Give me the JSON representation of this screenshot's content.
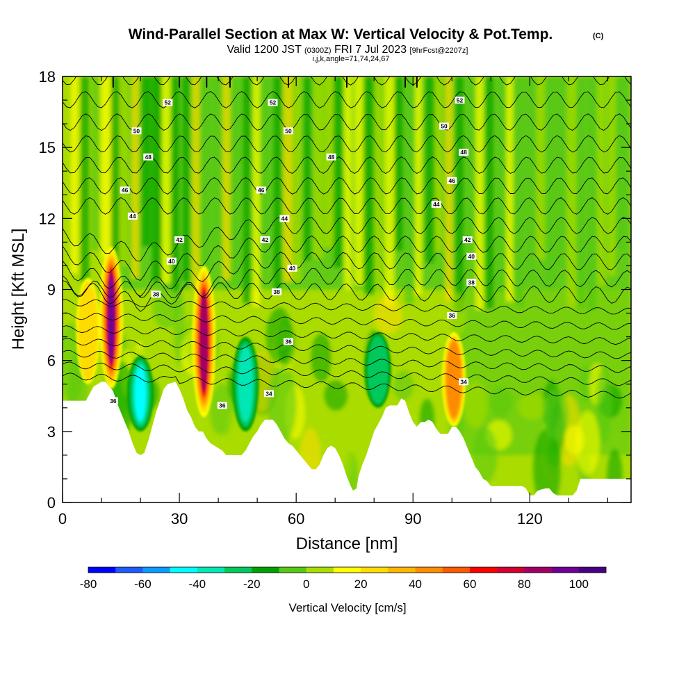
{
  "chart_data": {
    "type": "heatmap",
    "title": "Wind-Parallel Section at Max W: Vertical Velocity & Pot.Temp.",
    "title_mark": "(C)",
    "subtitle_main": "Valid 1200 JST",
    "subtitle_utc": "(0300Z)",
    "subtitle_date": "FRI 7 Jul 2023",
    "subtitle_fcst": "[9hrFcst@2207z]",
    "subtitle2": "i,j,k,angle=71,74,24,67",
    "xlabel": "Distance [nm]",
    "ylabel": "Height [Kft MSL]",
    "xlim": [
      0,
      146
    ],
    "ylim": [
      0,
      18
    ],
    "xticks": [
      0,
      30,
      60,
      90,
      120
    ],
    "yticks": [
      0,
      3,
      6,
      9,
      12,
      15,
      18
    ],
    "colorbar": {
      "label": "Vertical Velocity [cm/s]",
      "min": -80,
      "max": 110,
      "step": 10,
      "tick_values": [
        -80,
        -60,
        -40,
        -20,
        0,
        20,
        40,
        60,
        80,
        100
      ],
      "colors": [
        "#0000ff",
        "#1e5aff",
        "#0a9bff",
        "#00ffff",
        "#00e6b4",
        "#00c85a",
        "#00a000",
        "#55c814",
        "#aadc00",
        "#ffff00",
        "#ffdc00",
        "#ffb400",
        "#ff8c00",
        "#ff5a00",
        "#ff0000",
        "#d20032",
        "#a00064",
        "#6e0096",
        "#460082"
      ]
    },
    "contour_field": "Potential temperature",
    "contour_labels": [
      {
        "x": 27,
        "y": 16.9,
        "text": "52"
      },
      {
        "x": 54,
        "y": 16.9,
        "text": "52"
      },
      {
        "x": 102,
        "y": 17.0,
        "text": "52"
      },
      {
        "x": 19,
        "y": 15.7,
        "text": "50"
      },
      {
        "x": 58,
        "y": 15.7,
        "text": "50"
      },
      {
        "x": 98,
        "y": 15.9,
        "text": "50"
      },
      {
        "x": 22,
        "y": 14.6,
        "text": "48"
      },
      {
        "x": 69,
        "y": 14.6,
        "text": "48"
      },
      {
        "x": 103,
        "y": 14.8,
        "text": "48"
      },
      {
        "x": 16,
        "y": 13.2,
        "text": "46"
      },
      {
        "x": 51,
        "y": 13.2,
        "text": "46"
      },
      {
        "x": 100,
        "y": 13.6,
        "text": "46"
      },
      {
        "x": 18,
        "y": 12.1,
        "text": "44"
      },
      {
        "x": 57,
        "y": 12.0,
        "text": "44"
      },
      {
        "x": 96,
        "y": 12.6,
        "text": "44"
      },
      {
        "x": 30,
        "y": 11.1,
        "text": "42"
      },
      {
        "x": 52,
        "y": 11.1,
        "text": "42"
      },
      {
        "x": 104,
        "y": 11.1,
        "text": "42"
      },
      {
        "x": 28,
        "y": 10.2,
        "text": "40"
      },
      {
        "x": 59,
        "y": 9.9,
        "text": "40"
      },
      {
        "x": 105,
        "y": 10.4,
        "text": "40"
      },
      {
        "x": 24,
        "y": 8.8,
        "text": "38"
      },
      {
        "x": 55,
        "y": 8.9,
        "text": "38"
      },
      {
        "x": 105,
        "y": 9.3,
        "text": "38"
      },
      {
        "x": 58,
        "y": 6.8,
        "text": "36"
      },
      {
        "x": 100,
        "y": 7.9,
        "text": "36"
      },
      {
        "x": 41,
        "y": 4.1,
        "text": "36"
      },
      {
        "x": 13,
        "y": 4.3,
        "text": "36"
      },
      {
        "x": 53,
        "y": 4.6,
        "text": "34"
      },
      {
        "x": 103,
        "y": 5.1,
        "text": "34"
      }
    ],
    "updrafts": [
      {
        "x": 12.5,
        "y0": 4.8,
        "y1": 10.8,
        "peak_cm_s": 95
      },
      {
        "x": 36.3,
        "y0": 3.6,
        "y1": 10.0,
        "peak_cm_s": 90
      },
      {
        "x": 100.5,
        "y0": 3.2,
        "y1": 7.2,
        "peak_cm_s": 50
      },
      {
        "x": 6.5,
        "y0": 5.0,
        "y1": 9.5,
        "peak_cm_s": 30
      }
    ],
    "downdrafts": [
      {
        "x": 20,
        "y0": 3.0,
        "y1": 6.2,
        "min_cm_s": -50
      },
      {
        "x": 47,
        "y0": 3.0,
        "y1": 7.0,
        "min_cm_s": -35
      },
      {
        "x": 81,
        "y0": 4.0,
        "y1": 7.2,
        "min_cm_s": -30
      }
    ],
    "terrain_kft": [
      [
        0,
        4.3
      ],
      [
        6,
        4.3
      ],
      [
        7,
        4.6
      ],
      [
        8,
        4.9
      ],
      [
        10,
        5.1
      ],
      [
        11,
        5.1
      ],
      [
        13,
        4.7
      ],
      [
        14,
        4.2
      ],
      [
        15,
        3.8
      ],
      [
        16,
        3.4
      ],
      [
        17,
        3.0
      ],
      [
        18,
        2.5
      ],
      [
        19,
        2.1
      ],
      [
        20,
        2.0
      ],
      [
        21,
        2.1
      ],
      [
        22,
        2.6
      ],
      [
        23,
        3.2
      ],
      [
        24,
        3.8
      ],
      [
        25,
        4.3
      ],
      [
        26,
        4.8
      ],
      [
        27,
        5.0
      ],
      [
        29,
        5.1
      ],
      [
        30,
        4.8
      ],
      [
        31,
        4.4
      ],
      [
        32,
        3.9
      ],
      [
        33,
        3.6
      ],
      [
        34,
        3.2
      ],
      [
        35,
        3.0
      ],
      [
        36,
        3.0
      ],
      [
        37,
        2.7
      ],
      [
        38,
        2.5
      ],
      [
        39,
        2.4
      ],
      [
        40,
        2.3
      ],
      [
        41,
        2.2
      ],
      [
        42,
        2.0
      ],
      [
        46,
        2.0
      ],
      [
        47,
        2.2
      ],
      [
        48,
        2.5
      ],
      [
        49,
        2.8
      ],
      [
        50,
        3.0
      ],
      [
        51,
        3.3
      ],
      [
        52,
        3.5
      ],
      [
        54,
        3.5
      ],
      [
        55,
        3.3
      ],
      [
        56,
        3.0
      ],
      [
        57,
        2.7
      ],
      [
        58,
        2.5
      ],
      [
        59,
        2.4
      ],
      [
        60,
        2.2
      ],
      [
        61,
        2.0
      ],
      [
        62,
        1.8
      ],
      [
        63,
        1.6
      ],
      [
        64,
        1.4
      ],
      [
        65,
        1.4
      ],
      [
        66,
        1.6
      ],
      [
        67,
        2.0
      ],
      [
        68,
        2.3
      ],
      [
        69,
        2.4
      ],
      [
        70,
        2.3
      ],
      [
        71,
        2.0
      ],
      [
        72,
        1.6
      ],
      [
        73,
        1.1
      ],
      [
        74,
        0.7
      ],
      [
        74.6,
        0.5
      ],
      [
        75.5,
        0.6
      ],
      [
        76,
        1.1
      ],
      [
        77,
        1.6
      ],
      [
        78,
        2.0
      ],
      [
        79,
        2.5
      ],
      [
        80,
        3.0
      ],
      [
        81,
        3.3
      ],
      [
        82,
        3.6
      ],
      [
        83,
        4.0
      ],
      [
        84,
        4.1
      ],
      [
        86,
        4.1
      ],
      [
        87,
        4.4
      ],
      [
        88,
        4.3
      ],
      [
        89,
        3.8
      ],
      [
        90,
        3.4
      ],
      [
        91,
        3.2
      ],
      [
        92,
        3.4
      ],
      [
        93,
        3.4
      ],
      [
        94,
        3.5
      ],
      [
        95,
        3.4
      ],
      [
        96,
        3.1
      ],
      [
        97,
        2.9
      ],
      [
        99,
        2.9
      ],
      [
        100,
        3.2
      ],
      [
        101,
        3.2
      ],
      [
        102,
        3.0
      ],
      [
        103,
        2.7
      ],
      [
        104,
        2.3
      ],
      [
        105,
        1.9
      ],
      [
        106,
        1.5
      ],
      [
        107,
        1.3
      ],
      [
        108,
        1.0
      ],
      [
        109,
        0.9
      ],
      [
        110,
        0.7
      ],
      [
        118,
        0.7
      ],
      [
        119,
        0.6
      ],
      [
        120,
        0.3
      ],
      [
        121,
        0.3
      ],
      [
        122,
        0.5
      ],
      [
        124,
        0.6
      ],
      [
        125,
        0.6
      ],
      [
        126,
        0.4
      ],
      [
        127,
        0.3
      ],
      [
        131,
        0.3
      ],
      [
        132,
        0.5
      ],
      [
        133,
        1.0
      ],
      [
        145,
        1.0
      ],
      [
        146,
        1.0
      ]
    ]
  }
}
